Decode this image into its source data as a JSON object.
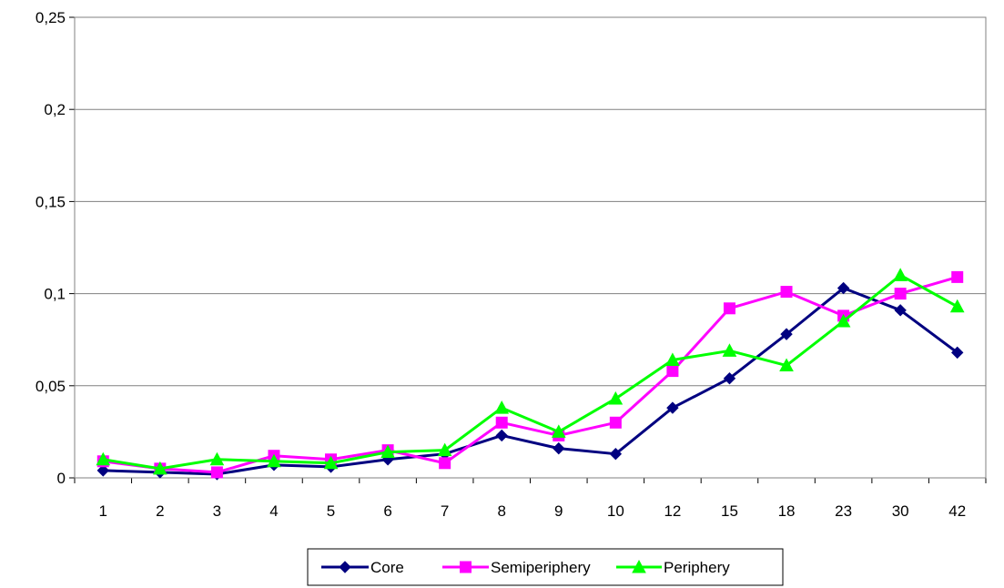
{
  "chart_data": {
    "type": "line",
    "categories": [
      "1",
      "2",
      "3",
      "4",
      "5",
      "6",
      "7",
      "8",
      "9",
      "10",
      "12",
      "15",
      "18",
      "23",
      "30",
      "42"
    ],
    "ylim": [
      0,
      0.25
    ],
    "y_ticks": [
      "0",
      "0,05",
      "0,1",
      "0,15",
      "0,2",
      "0,25"
    ],
    "grid": "horizontal",
    "legend_position": "bottom",
    "series": [
      {
        "name": "Core",
        "color": "#000080",
        "marker": "diamond",
        "values": [
          0.004,
          0.003,
          0.002,
          0.007,
          0.006,
          0.01,
          0.013,
          0.023,
          0.016,
          0.013,
          0.038,
          0.054,
          0.078,
          0.103,
          0.091,
          0.068
        ]
      },
      {
        "name": "Semiperiphery",
        "color": "#ff00ff",
        "marker": "square",
        "values": [
          0.009,
          0.005,
          0.003,
          0.012,
          0.01,
          0.015,
          0.008,
          0.03,
          0.023,
          0.03,
          0.058,
          0.092,
          0.101,
          0.088,
          0.1,
          0.109
        ]
      },
      {
        "name": "Periphery",
        "color": "#00ff00",
        "marker": "triangle",
        "values": [
          0.01,
          0.005,
          0.01,
          0.009,
          0.008,
          0.014,
          0.015,
          0.038,
          0.025,
          0.043,
          0.064,
          0.069,
          0.061,
          0.085,
          0.11,
          0.093
        ]
      }
    ]
  }
}
